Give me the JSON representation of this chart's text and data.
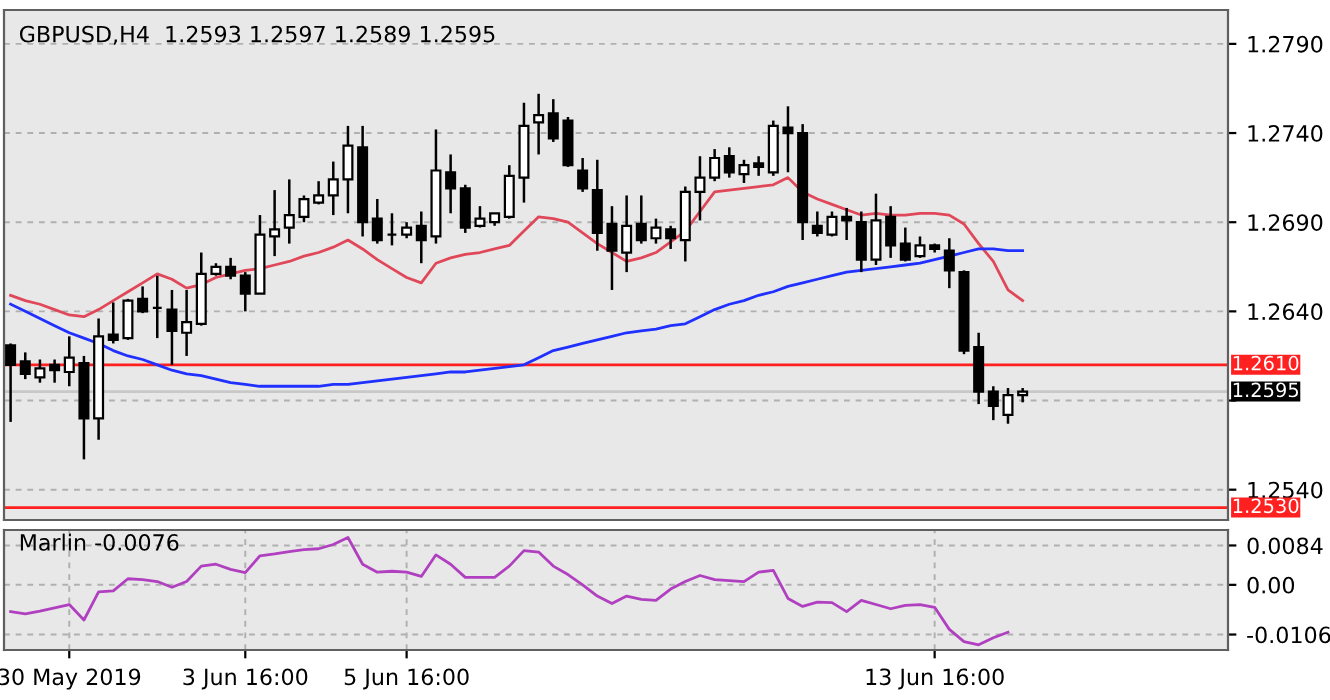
{
  "chart_data": [
    {
      "type": "candlestick",
      "title": "GBPUSD,H4  1.2593 1.2597 1.2589 1.2595",
      "categories": [
        null,
        null,
        null,
        null,
        null,
        null,
        null,
        null,
        null,
        null,
        null,
        null,
        null,
        null,
        null,
        null,
        null,
        null,
        null,
        null,
        null,
        null,
        null,
        null,
        null,
        null,
        null,
        null,
        null,
        null,
        null,
        null,
        null,
        null,
        null,
        null,
        null,
        null,
        null,
        null,
        null,
        null,
        null,
        null,
        null,
        null,
        null,
        null,
        null,
        null,
        null,
        null,
        null,
        null,
        null,
        null,
        null,
        null,
        null,
        null,
        null,
        null,
        null,
        null,
        null,
        null,
        null,
        null,
        null,
        null
      ],
      "ohlc": [
        [
          1.2621,
          1.2622,
          1.2578,
          1.261
        ],
        [
          1.2612,
          1.2617,
          1.2602,
          1.2605
        ],
        [
          1.2603,
          1.2613,
          1.26,
          1.2608
        ],
        [
          1.261,
          1.2613,
          1.26,
          1.2607
        ],
        [
          1.2606,
          1.2626,
          1.2598,
          1.2614
        ],
        [
          1.2611,
          1.2615,
          1.2557,
          1.258
        ],
        [
          1.258,
          1.2636,
          1.2568,
          1.2626
        ],
        [
          1.2627,
          1.2645,
          1.2622,
          1.2624
        ],
        [
          1.2625,
          1.2647,
          1.2624,
          1.2646
        ],
        [
          1.2647,
          1.2654,
          1.2639,
          1.264
        ],
        [
          1.2642,
          1.266,
          1.2625,
          1.2642
        ],
        [
          1.2641,
          1.2652,
          1.261,
          1.2629
        ],
        [
          1.2628,
          1.2652,
          1.2615,
          1.2634
        ],
        [
          1.2633,
          1.2673,
          1.2632,
          1.2661
        ],
        [
          1.2661,
          1.2667,
          1.266,
          1.2665
        ],
        [
          1.2665,
          1.267,
          1.2658,
          1.266
        ],
        [
          1.266,
          1.2662,
          1.264,
          1.265
        ],
        [
          1.265,
          1.2694,
          1.265,
          1.2683
        ],
        [
          1.2682,
          1.2708,
          1.2671,
          1.2686
        ],
        [
          1.2687,
          1.2714,
          1.2678,
          1.2694
        ],
        [
          1.2693,
          1.2705,
          1.269,
          1.2703
        ],
        [
          1.2701,
          1.2713,
          1.27,
          1.2705
        ],
        [
          1.2705,
          1.2724,
          1.2694,
          1.2714
        ],
        [
          1.2714,
          1.2744,
          1.2695,
          1.2733
        ],
        [
          1.2732,
          1.2744,
          1.2682,
          1.269
        ],
        [
          1.2692,
          1.2703,
          1.2678,
          1.268
        ],
        [
          1.2683,
          1.2695,
          1.2677,
          1.2683
        ],
        [
          1.2683,
          1.269,
          1.2681,
          1.2687
        ],
        [
          1.2688,
          1.2696,
          1.2667,
          1.268
        ],
        [
          1.2682,
          1.2742,
          1.2678,
          1.2719
        ],
        [
          1.2718,
          1.2728,
          1.2695,
          1.2709
        ],
        [
          1.2709,
          1.2711,
          1.2684,
          1.2687
        ],
        [
          1.2688,
          1.2699,
          1.2687,
          1.2692
        ],
        [
          1.269,
          1.2695,
          1.2688,
          1.2695
        ],
        [
          1.2693,
          1.2722,
          1.2692,
          1.2716
        ],
        [
          1.2715,
          1.2757,
          1.2701,
          1.2744
        ],
        [
          1.2746,
          1.2762,
          1.2728,
          1.275
        ],
        [
          1.2751,
          1.2759,
          1.2735,
          1.2737
        ],
        [
          1.2747,
          1.2749,
          1.2721,
          1.2722
        ],
        [
          1.2719,
          1.2726,
          1.2707,
          1.2709
        ],
        [
          1.2708,
          1.2725,
          1.2674,
          1.2684
        ],
        [
          1.2689,
          1.2699,
          1.2652,
          1.2674
        ],
        [
          1.2673,
          1.2705,
          1.2662,
          1.2688
        ],
        [
          1.2689,
          1.2705,
          1.2678,
          1.268
        ],
        [
          1.2681,
          1.2692,
          1.2678,
          1.2687
        ],
        [
          1.2686,
          1.2688,
          1.2675,
          1.2681
        ],
        [
          1.268,
          1.271,
          1.2668,
          1.2707
        ],
        [
          1.2707,
          1.2727,
          1.2691,
          1.2715
        ],
        [
          1.2715,
          1.2731,
          1.2713,
          1.2726
        ],
        [
          1.2727,
          1.2732,
          1.2715,
          1.2718
        ],
        [
          1.2717,
          1.2725,
          1.2712,
          1.2722
        ],
        [
          1.2723,
          1.2727,
          1.2716,
          1.2721
        ],
        [
          1.2718,
          1.2747,
          1.2716,
          1.2744
        ],
        [
          1.2743,
          1.2755,
          1.2718,
          1.274
        ],
        [
          1.274,
          1.2745,
          1.268,
          1.269
        ],
        [
          1.2688,
          1.2696,
          1.2682,
          1.2684
        ],
        [
          1.2683,
          1.2696,
          1.2682,
          1.2693
        ],
        [
          1.2693,
          1.2698,
          1.268,
          1.2691
        ],
        [
          1.269,
          1.2696,
          1.2662,
          1.2669
        ],
        [
          1.2669,
          1.2706,
          1.2666,
          1.2691
        ],
        [
          1.2693,
          1.2699,
          1.267,
          1.2677
        ],
        [
          1.2678,
          1.2687,
          1.2668,
          1.2669
        ],
        [
          1.2671,
          1.2682,
          1.267,
          1.2677
        ],
        [
          1.2677,
          1.2678,
          1.2673,
          1.2675
        ],
        [
          1.2674,
          1.2681,
          1.2653,
          1.2663
        ],
        [
          1.2662,
          1.2663,
          1.2616,
          1.2618
        ],
        [
          1.262,
          1.2628,
          1.2588,
          1.2595
        ],
        [
          1.2595,
          1.2598,
          1.2579,
          1.2587
        ],
        [
          1.2582,
          1.2597,
          1.2577,
          1.2593
        ],
        [
          1.2593,
          1.2597,
          1.2589,
          1.2595
        ]
      ],
      "series": [
        {
          "type": "line",
          "color": "#e0485a",
          "values": [
            1.2649,
            1.2646,
            1.2644,
            1.2641,
            1.2638,
            1.2637,
            1.2641,
            1.2646,
            1.2651,
            1.2656,
            1.2661,
            1.2658,
            1.2653,
            1.2655,
            1.2659,
            1.2661,
            1.2663,
            1.2664,
            1.2666,
            1.2668,
            1.2671,
            1.2673,
            1.2676,
            1.268,
            1.2675,
            1.2669,
            1.2664,
            1.2659,
            1.2656,
            1.2667,
            1.267,
            1.2672,
            1.2673,
            1.2675,
            1.2677,
            1.2685,
            1.2693,
            1.2692,
            1.269,
            1.2684,
            1.2678,
            1.2673,
            1.2668,
            1.267,
            1.2673,
            1.2679,
            1.2685,
            1.2696,
            1.2707,
            1.2708,
            1.2709,
            1.271,
            1.2711,
            1.2715,
            1.2707,
            1.2703,
            1.27,
            1.2697,
            1.2694,
            1.2695,
            1.2694,
            1.2694,
            1.2695,
            1.2695,
            1.2694,
            1.2689,
            1.2678,
            1.2668,
            1.2652,
            1.2646
          ]
        },
        {
          "type": "line",
          "color": "#2030ff",
          "values": [
            1.2644,
            1.264,
            1.2636,
            1.2632,
            1.2628,
            1.2625,
            1.2622,
            1.2618,
            1.2615,
            1.2613,
            1.261,
            1.2607,
            1.2605,
            1.2604,
            1.2602,
            1.26,
            1.2599,
            1.2598,
            1.2598,
            1.2598,
            1.2598,
            1.2598,
            1.2599,
            1.2599,
            1.26,
            1.2601,
            1.2602,
            1.2603,
            1.2604,
            1.2605,
            1.2606,
            1.2606,
            1.2607,
            1.2608,
            1.2609,
            1.261,
            1.2614,
            1.2618,
            1.262,
            1.2622,
            1.2624,
            1.2626,
            1.2628,
            1.2629,
            1.263,
            1.2632,
            1.2633,
            1.2637,
            1.2641,
            1.2644,
            1.2646,
            1.2649,
            1.2651,
            1.2654,
            1.2656,
            1.2658,
            1.266,
            1.2662,
            1.2663,
            1.2664,
            1.2665,
            1.2666,
            1.2667,
            1.2669,
            1.2671,
            1.2673,
            1.2675,
            1.2675,
            1.2674,
            1.2674
          ]
        }
      ],
      "ylim": [
        1.2523,
        1.2809
      ],
      "yticks": [
        {
          "value": 1.254,
          "label": "1.2540"
        },
        {
          "value": 1.259,
          "label": null
        },
        {
          "value": 1.264,
          "label": "1.2640"
        },
        {
          "value": 1.269,
          "label": "1.2690"
        },
        {
          "value": 1.274,
          "label": "1.2740"
        },
        {
          "value": 1.279,
          "label": "1.2790"
        }
      ],
      "ref_lines": [
        {
          "axis": "y",
          "value": 1.261,
          "label": "1.2610",
          "color": "#ff2020"
        },
        {
          "axis": "y",
          "value": 1.253,
          "label": "1.2530",
          "color": "#ff2020"
        },
        {
          "axis": "y",
          "value": 1.2595,
          "label": "1.2595",
          "color": "#c8c8c8"
        }
      ],
      "grid": true,
      "tick_labels": "y"
    },
    {
      "type": "line",
      "title": "Marlin -0.0076",
      "categories": [
        null,
        null,
        null,
        null,
        "30 May 2019",
        null,
        null,
        null,
        null,
        null,
        null,
        null,
        null,
        null,
        null,
        null,
        "3 Jun 16:00",
        null,
        null,
        null,
        null,
        null,
        null,
        null,
        null,
        null,
        null,
        "5 Jun 16:00",
        null,
        null,
        null,
        null,
        null,
        null,
        null,
        null,
        null,
        null,
        null,
        null,
        null,
        null,
        null,
        null,
        null,
        null,
        null,
        null,
        null,
        null,
        null,
        null,
        null,
        null,
        null,
        null,
        null,
        null,
        null,
        null,
        null,
        null,
        null,
        "13 Jun 16:00",
        null,
        null,
        null,
        null,
        null,
        null
      ],
      "series": [
        {
          "color": "#b040c0",
          "values": [
            -0.0057,
            -0.0062,
            -0.0056,
            -0.0049,
            -0.0042,
            -0.0075,
            -0.0015,
            -0.0013,
            0.0013,
            0.0011,
            0.0007,
            -0.0005,
            0.0007,
            0.004,
            0.0044,
            0.0033,
            0.0026,
            0.0062,
            0.0066,
            0.0071,
            0.0075,
            0.0077,
            0.0086,
            0.0101,
            0.0044,
            0.0027,
            0.0029,
            0.0027,
            0.0018,
            0.0064,
            0.0044,
            0.0016,
            0.0016,
            0.0016,
            0.004,
            0.0073,
            0.007,
            0.004,
            0.0022,
            0.0,
            -0.0024,
            -0.004,
            -0.0024,
            -0.0031,
            -0.0033,
            -0.0009,
            0.0007,
            0.002,
            0.0011,
            0.0009,
            0.0007,
            0.0027,
            0.0031,
            -0.0029,
            -0.0046,
            -0.0037,
            -0.0038,
            -0.0057,
            -0.0033,
            -0.0042,
            -0.0051,
            -0.0044,
            -0.0042,
            -0.0048,
            -0.0095,
            -0.0121,
            -0.0128,
            -0.0113,
            -0.0101,
            null
          ]
        }
      ],
      "ylim": [
        -0.0139,
        0.0117
      ],
      "yticks": [
        {
          "value": -0.0106,
          "label": "-0.0106"
        },
        {
          "value": 0,
          "label": "0.00"
        },
        {
          "value": 0.0084,
          "label": "0.0084"
        }
      ],
      "grid": true
    }
  ]
}
